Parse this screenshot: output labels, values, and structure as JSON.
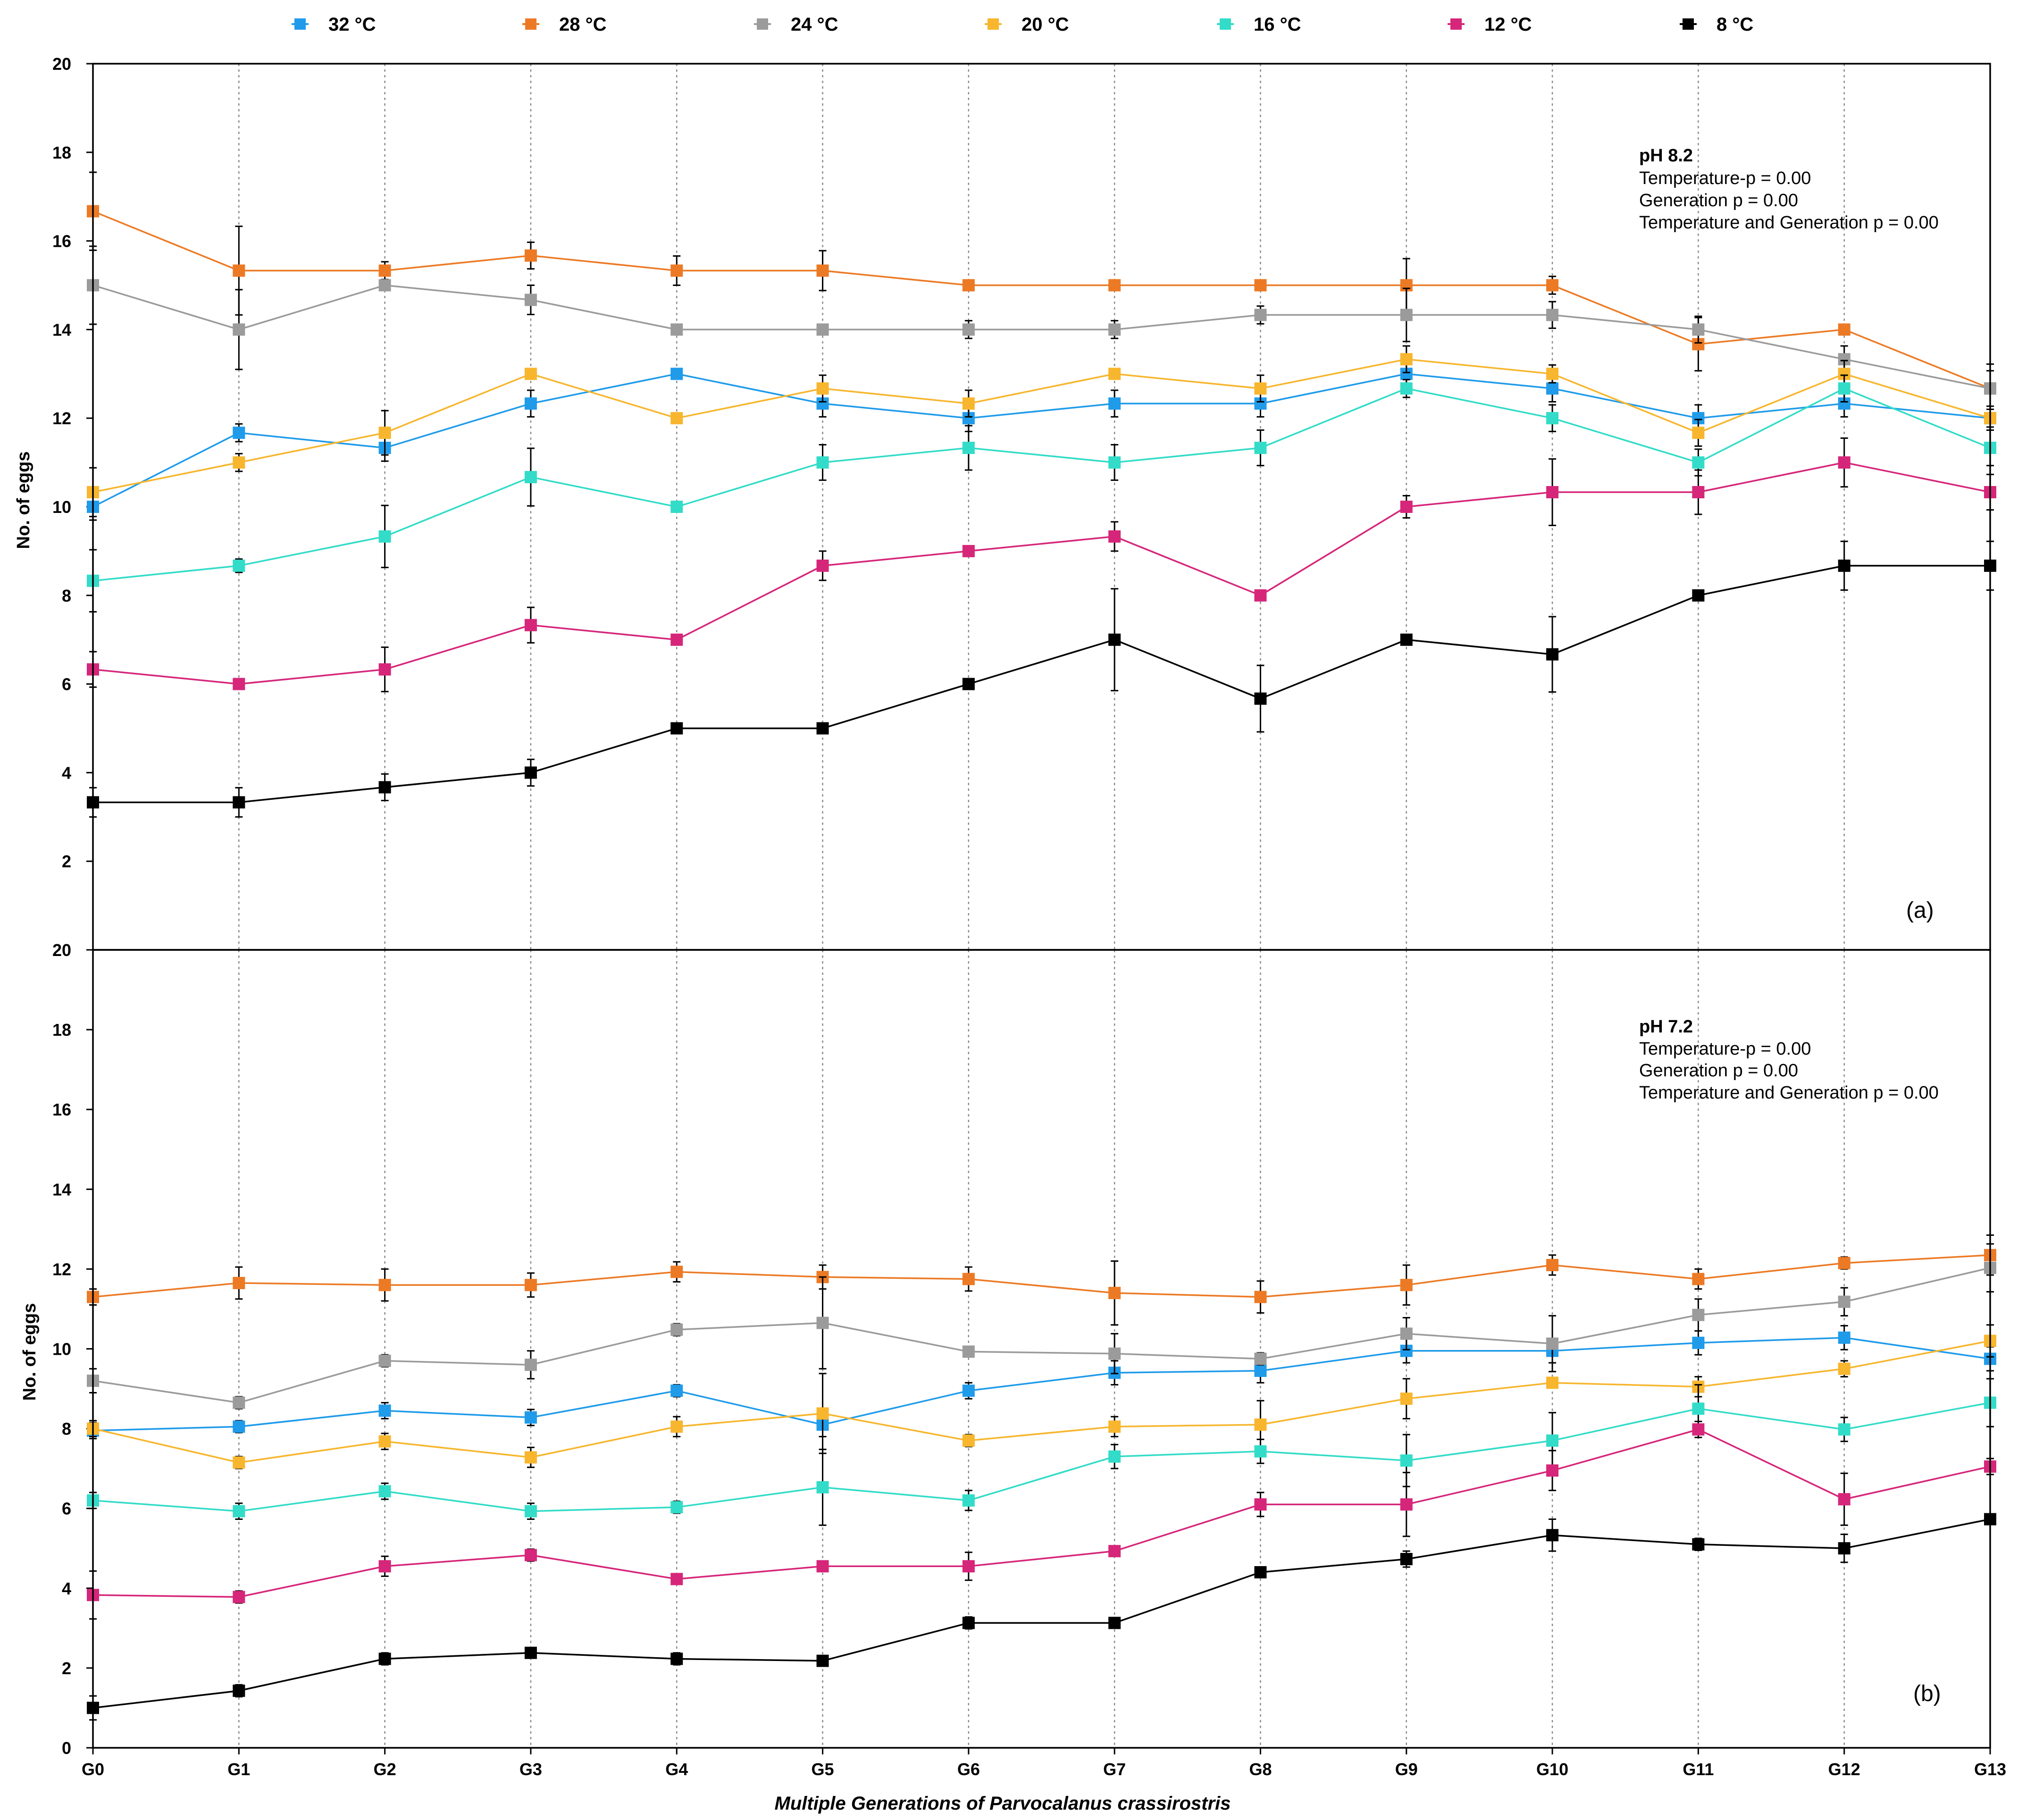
{
  "chart_data": {
    "type": "line",
    "xlabel": "Multiple Generations of Parvocalanus crassirostris",
    "categories": [
      "G0",
      "G1",
      "G2",
      "G3",
      "G4",
      "G5",
      "G6",
      "G7",
      "G8",
      "G9",
      "G10",
      "G11",
      "G12",
      "G13"
    ],
    "legend": {
      "placement": "top",
      "entries": [
        {
          "name": "32 °C",
          "color": "#1f9bea"
        },
        {
          "name": "28 °C",
          "color": "#ec7a25"
        },
        {
          "name": "24 °C",
          "color": "#9b9b9b"
        },
        {
          "name": "20 °C",
          "color": "#f7b62e"
        },
        {
          "name": "16 °C",
          "color": "#33dcc8"
        },
        {
          "name": "12 °C",
          "color": "#d6267a"
        },
        {
          "name": "8 °C",
          "color": "#000000"
        }
      ]
    },
    "panels": [
      {
        "tag": "(a)",
        "ylabel": "No. of eggs",
        "ylim": [
          0,
          20
        ],
        "yticks": [
          2,
          4,
          6,
          8,
          10,
          12,
          14,
          16,
          18,
          20
        ],
        "stats_title": "pH 8.2",
        "stats_lines": [
          "Temperature-p = 0.00",
          "Generation p = 0.00",
          "Temperature and Generation p = 0.00"
        ],
        "series": [
          {
            "name": "32 °C",
            "values": [
              10.0,
              11.67,
              11.33,
              12.33,
              13.0,
              12.33,
              12.0,
              12.33,
              12.33,
              13.0,
              12.67,
              12.0,
              12.33,
              12.0
            ],
            "errors": [
              0.3,
              0.2,
              0.3,
              0.3,
              0.1,
              0.3,
              0.3,
              0.3,
              0.3,
              0.3,
              0.3,
              0.3,
              0.3,
              0.1
            ]
          },
          {
            "name": "28 °C",
            "values": [
              16.67,
              15.33,
              15.33,
              15.67,
              15.33,
              15.33,
              15.0,
              15.0,
              15.0,
              15.0,
              15.0,
              13.67,
              14.0,
              12.67
            ],
            "errors": [
              0.88,
              1.0,
              0.2,
              0.3,
              0.33,
              0.45,
              0.1,
              0.1,
              0.05,
              0.6,
              0.2,
              0.6,
              0.1,
              0.55
            ]
          },
          {
            "name": "24 °C",
            "values": [
              15.0,
              14.0,
              15.0,
              14.67,
              14.0,
              14.0,
              14.0,
              14.0,
              14.33,
              14.33,
              14.33,
              14.0,
              13.33,
              12.67
            ],
            "errors": [
              0.88,
              0.9,
              0.1,
              0.33,
              0.1,
              0.05,
              0.2,
              0.2,
              0.2,
              0.6,
              0.3,
              0.3,
              0.3,
              0.4
            ]
          },
          {
            "name": "20 °C",
            "values": [
              10.33,
              11.0,
              11.67,
              13.0,
              12.0,
              12.67,
              12.33,
              13.0,
              12.67,
              13.33,
              13.0,
              11.67,
              13.0,
              12.0
            ],
            "errors": [
              0.55,
              0.2,
              0.5,
              0.1,
              0.1,
              0.3,
              0.3,
              0.1,
              0.3,
              0.3,
              0.2,
              0.3,
              0.3,
              0.2
            ]
          },
          {
            "name": "16 °C",
            "values": [
              8.33,
              8.67,
              9.33,
              10.67,
              10.0,
              11.0,
              11.33,
              11.0,
              11.33,
              12.67,
              12.0,
              11.0,
              12.67,
              11.33
            ],
            "errors": [
              0.7,
              0.15,
              0.7,
              0.65,
              0.1,
              0.4,
              0.5,
              0.4,
              0.4,
              0.2,
              0.3,
              0.3,
              0.3,
              0.4
            ]
          },
          {
            "name": "12 °C",
            "values": [
              6.33,
              6.0,
              6.33,
              7.33,
              7.0,
              8.67,
              9.0,
              9.33,
              8.0,
              10.0,
              10.33,
              10.33,
              11.0,
              10.33
            ],
            "errors": [
              0.4,
              0.1,
              0.5,
              0.4,
              0.1,
              0.33,
              0.1,
              0.33,
              0.1,
              0.25,
              0.75,
              0.5,
              0.55,
              0.4
            ]
          },
          {
            "name": "8 °C",
            "values": [
              3.33,
              3.33,
              3.67,
              4.0,
              5.0,
              5.0,
              6.0,
              7.0,
              5.67,
              7.0,
              6.67,
              8.0,
              8.67,
              8.67
            ],
            "errors": [
              0.33,
              0.33,
              0.3,
              0.3,
              0.05,
              0.05,
              0.1,
              1.15,
              0.75,
              0.05,
              0.85,
              0.05,
              0.55,
              0.55
            ]
          }
        ]
      },
      {
        "tag": "(b)",
        "ylabel": "No. of eggs",
        "ylim": [
          0,
          20
        ],
        "yticks": [
          0,
          2,
          4,
          6,
          8,
          10,
          12,
          14,
          16,
          18,
          20
        ],
        "stats_title": "pH 7.2",
        "stats_lines": [
          "Temperature-p = 0.00",
          "Generation p = 0.00",
          "Temperature and Generation p = 0.00"
        ],
        "series": [
          {
            "name": "32 °C",
            "values": [
              7.95,
              8.05,
              8.45,
              8.28,
              8.95,
              8.1,
              8.95,
              9.4,
              9.45,
              9.95,
              9.95,
              10.15,
              10.28,
              9.75
            ],
            "errors": [
              0.2,
              0.15,
              0.2,
              0.2,
              0.15,
              0.3,
              0.2,
              0.3,
              0.3,
              0.3,
              0.3,
              0.3,
              0.3,
              0.3
            ]
          },
          {
            "name": "28 °C",
            "values": [
              11.3,
              11.65,
              11.6,
              11.6,
              11.93,
              11.8,
              11.75,
              11.4,
              11.3,
              11.6,
              12.1,
              11.75,
              12.15,
              12.35
            ],
            "errors": [
              0.2,
              0.4,
              0.4,
              0.3,
              0.25,
              0.3,
              0.3,
              0.8,
              0.4,
              0.5,
              0.25,
              0.25,
              0.15,
              0.5
            ]
          },
          {
            "name": "24 °C",
            "values": [
              9.2,
              8.65,
              9.7,
              9.6,
              10.48,
              10.65,
              9.93,
              9.88,
              9.75,
              10.38,
              10.13,
              10.85,
              11.18,
              12.03
            ],
            "errors": [
              0.3,
              0.15,
              0.15,
              0.35,
              0.15,
              1.15,
              0.1,
              0.5,
              0.15,
              0.4,
              0.7,
              0.4,
              0.35,
              0.6
            ]
          },
          {
            "name": "20 °C",
            "values": [
              8.0,
              7.15,
              7.68,
              7.28,
              8.05,
              8.38,
              7.7,
              8.05,
              8.1,
              8.75,
              9.15,
              9.05,
              9.5,
              10.2
            ],
            "errors": [
              0.2,
              0.15,
              0.2,
              0.25,
              0.25,
              1.0,
              0.15,
              0.25,
              0.6,
              0.5,
              0.1,
              0.25,
              0.2,
              0.4
            ]
          },
          {
            "name": "16 °C",
            "values": [
              6.2,
              5.93,
              6.43,
              5.93,
              6.03,
              6.53,
              6.2,
              7.3,
              7.43,
              7.2,
              7.7,
              8.5,
              7.98,
              8.65
            ],
            "errors": [
              0.2,
              0.2,
              0.2,
              0.2,
              0.15,
              0.95,
              0.25,
              0.3,
              0.3,
              0.65,
              0.7,
              0.6,
              0.3,
              0.6
            ]
          },
          {
            "name": "12 °C",
            "values": [
              3.83,
              3.78,
              4.55,
              4.83,
              4.23,
              4.55,
              4.55,
              4.93,
              6.1,
              6.1,
              6.95,
              7.98,
              6.23,
              7.05
            ],
            "errors": [
              0.6,
              0.15,
              0.25,
              0.15,
              0.1,
              0.1,
              0.35,
              0.1,
              0.3,
              0.8,
              0.5,
              0.2,
              0.65,
              0.2
            ]
          },
          {
            "name": "8 °C",
            "values": [
              1.0,
              1.43,
              2.23,
              2.38,
              2.23,
              2.18,
              3.13,
              3.13,
              4.4,
              4.73,
              5.33,
              5.1,
              5.0,
              5.73
            ],
            "errors": [
              0.3,
              0.15,
              0.15,
              0.1,
              0.15,
              0.1,
              0.15,
              0.1,
              0.1,
              0.2,
              0.4,
              0.15,
              0.35,
              0.1
            ]
          }
        ]
      }
    ]
  }
}
